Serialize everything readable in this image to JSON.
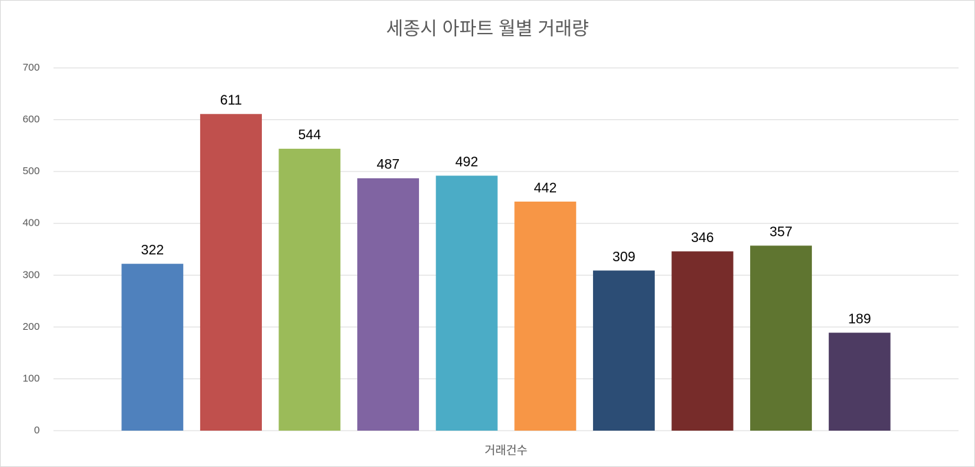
{
  "chart_data": {
    "type": "bar",
    "title": "세종시 아파트 월별 거래량",
    "categories": [
      "거래건수"
    ],
    "series": [
      {
        "color": "#4f81bd",
        "values": [
          322
        ]
      },
      {
        "color": "#c0504d",
        "values": [
          611
        ]
      },
      {
        "color": "#9bbb59",
        "values": [
          544
        ]
      },
      {
        "color": "#8064a2",
        "values": [
          487
        ]
      },
      {
        "color": "#4bacc6",
        "values": [
          492
        ]
      },
      {
        "color": "#f79646",
        "values": [
          442
        ]
      },
      {
        "color": "#2c4d75",
        "values": [
          309
        ]
      },
      {
        "color": "#772c2a",
        "values": [
          346
        ]
      },
      {
        "color": "#5f7530",
        "values": [
          357
        ]
      },
      {
        "color": "#4d3b62",
        "values": [
          189
        ]
      }
    ],
    "ylim": [
      0,
      700
    ],
    "yticks": [
      0,
      100,
      200,
      300,
      400,
      500,
      600,
      700
    ],
    "grid": true
  }
}
